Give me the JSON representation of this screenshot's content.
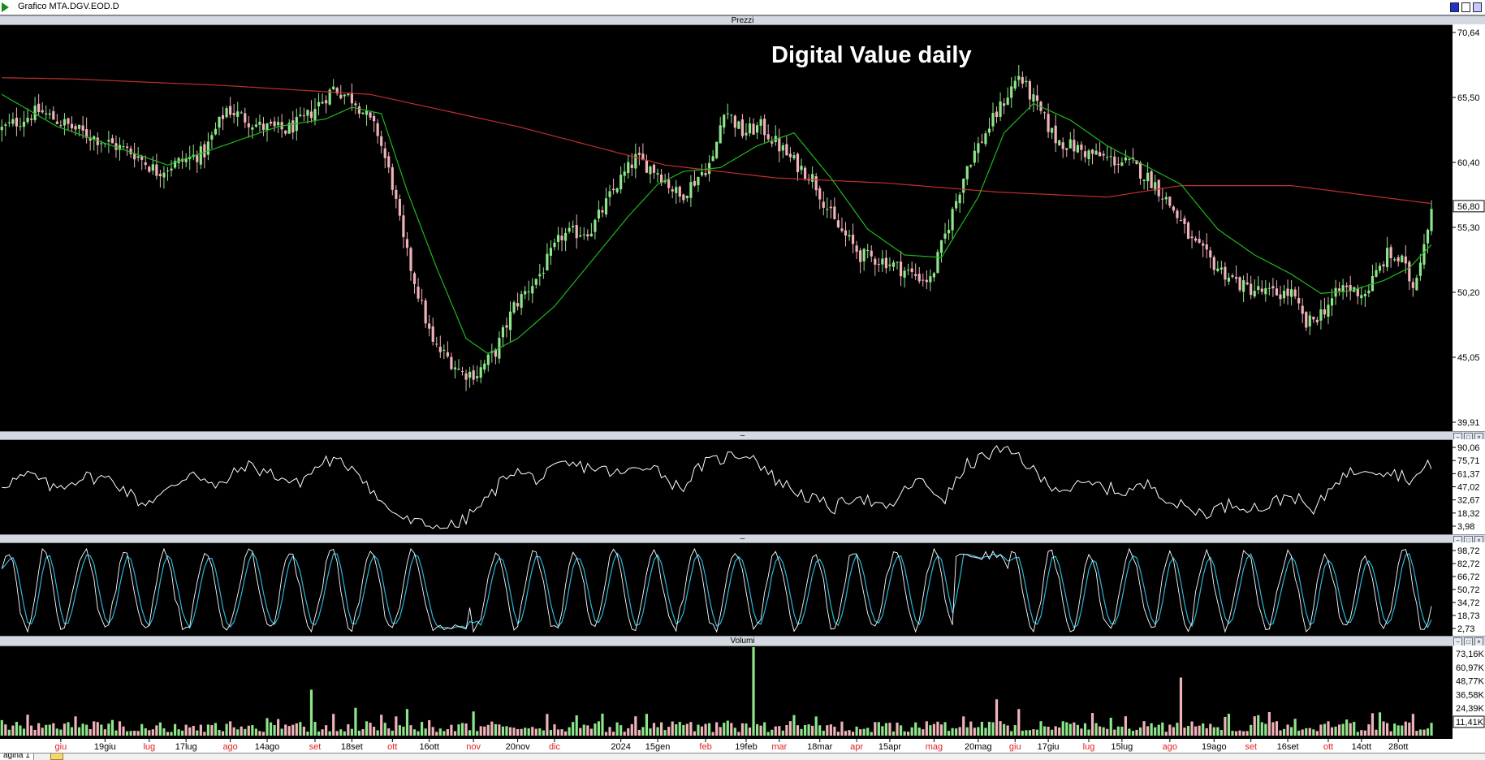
{
  "window": {
    "title": "Grafico MTA.DGV.EOD.D"
  },
  "panels": {
    "price": {
      "caption": "Prezzi",
      "buttons": [
        "−",
        "□",
        "×"
      ]
    },
    "rsi": {
      "caption": "–",
      "buttons": [
        "−",
        "□",
        "×"
      ]
    },
    "stoch": {
      "caption": "–",
      "buttons": [
        "−",
        "□",
        "×"
      ]
    },
    "volume": {
      "caption": "Volumi",
      "buttons": [
        "−",
        "□",
        "×"
      ]
    }
  },
  "bottom_tab": {
    "label": "agina 1"
  },
  "colors": {
    "up": "#8ee68a",
    "down": "#f0b3ba",
    "ma_long": "#c0302c",
    "ma_short": "#1db81d",
    "rsi": "#ffffff",
    "stoch_k": "#ffffff",
    "stoch_d": "#28b8d8",
    "date_red": "#e02020",
    "date_black": "#000000"
  },
  "chart_data": [
    {
      "type": "candlestick",
      "title": "Digital Value daily",
      "ylim": [
        39.91,
        70.64
      ],
      "y_ticks": [
        "70,64",
        "65,50",
        "60,40",
        "55,30",
        "50,20",
        "45,05",
        "39,91"
      ],
      "last_price_label": "56,80",
      "last_price": 56.8,
      "close_path": [
        [
          0,
          62.8
        ],
        [
          10,
          64.2
        ],
        [
          22,
          62.5
        ],
        [
          36,
          60.9
        ],
        [
          42,
          59.5
        ],
        [
          47,
          60.1
        ],
        [
          55,
          61.0
        ],
        [
          61,
          64.4
        ],
        [
          70,
          63.0
        ],
        [
          77,
          62.7
        ],
        [
          82,
          63.5
        ],
        [
          90,
          66.0
        ],
        [
          96,
          65.0
        ],
        [
          102,
          62.5
        ],
        [
          106,
          58.5
        ],
        [
          109,
          54.0
        ],
        [
          113,
          50.0
        ],
        [
          117,
          46.0
        ],
        [
          121,
          45.0
        ],
        [
          125,
          43.8
        ],
        [
          129,
          43.8
        ],
        [
          134,
          45.5
        ],
        [
          139,
          49.0
        ],
        [
          146,
          51.5
        ],
        [
          152,
          54.5
        ],
        [
          160,
          55.0
        ],
        [
          167,
          58.5
        ],
        [
          172,
          60.5
        ],
        [
          178,
          59.5
        ],
        [
          184,
          57.5
        ],
        [
          193,
          60.4
        ],
        [
          196,
          64.5
        ],
        [
          201,
          62.5
        ],
        [
          206,
          63.0
        ],
        [
          214,
          60.5
        ],
        [
          220,
          59.0
        ],
        [
          226,
          55.5
        ],
        [
          233,
          53.0
        ],
        [
          240,
          52.5
        ],
        [
          247,
          51.5
        ],
        [
          252,
          51.0
        ],
        [
          256,
          54.5
        ],
        [
          262,
          60.0
        ],
        [
          268,
          63.0
        ],
        [
          276,
          67.0
        ],
        [
          281,
          64.5
        ],
        [
          286,
          62.0
        ],
        [
          294,
          61.0
        ],
        [
          300,
          60.5
        ],
        [
          307,
          60.0
        ],
        [
          313,
          58.5
        ],
        [
          318,
          56.5
        ],
        [
          323,
          54.0
        ],
        [
          330,
          52.0
        ],
        [
          337,
          50.5
        ],
        [
          344,
          50.0
        ],
        [
          350,
          50.0
        ],
        [
          354,
          47.5
        ],
        [
          358,
          48.5
        ],
        [
          364,
          50.5
        ],
        [
          370,
          50.0
        ],
        [
          376,
          53.0
        ],
        [
          380,
          52.5
        ],
        [
          383,
          50.5
        ],
        [
          386,
          54.0
        ],
        [
          388,
          56.8
        ]
      ],
      "ma_long": [
        [
          0,
          66.8
        ],
        [
          20,
          66.7
        ],
        [
          60,
          66.2
        ],
        [
          100,
          65.5
        ],
        [
          140,
          63.0
        ],
        [
          180,
          60.0
        ],
        [
          210,
          59.0
        ],
        [
          240,
          58.6
        ],
        [
          270,
          57.9
        ],
        [
          300,
          57.5
        ],
        [
          320,
          58.4
        ],
        [
          350,
          58.4
        ],
        [
          388,
          57.0
        ]
      ],
      "ma_short": [
        [
          0,
          65.5
        ],
        [
          15,
          63.0
        ],
        [
          30,
          61.5
        ],
        [
          45,
          60.0
        ],
        [
          60,
          61.5
        ],
        [
          75,
          63.0
        ],
        [
          88,
          63.6
        ],
        [
          95,
          64.5
        ],
        [
          103,
          64.0
        ],
        [
          110,
          58.0
        ],
        [
          118,
          52.0
        ],
        [
          126,
          46.5
        ],
        [
          132,
          45.3
        ],
        [
          140,
          46.5
        ],
        [
          150,
          49.0
        ],
        [
          160,
          52.5
        ],
        [
          170,
          56.0
        ],
        [
          178,
          58.5
        ],
        [
          185,
          59.5
        ],
        [
          195,
          59.8
        ],
        [
          205,
          61.5
        ],
        [
          215,
          62.5
        ],
        [
          225,
          59.0
        ],
        [
          235,
          55.0
        ],
        [
          245,
          53.0
        ],
        [
          255,
          52.8
        ],
        [
          265,
          57.5
        ],
        [
          272,
          62.5
        ],
        [
          280,
          64.8
        ],
        [
          290,
          63.5
        ],
        [
          300,
          61.5
        ],
        [
          310,
          60.0
        ],
        [
          320,
          58.5
        ],
        [
          330,
          55.0
        ],
        [
          340,
          53.0
        ],
        [
          350,
          51.5
        ],
        [
          358,
          50.0
        ],
        [
          366,
          50.2
        ],
        [
          375,
          51.0
        ],
        [
          382,
          52.0
        ],
        [
          388,
          53.8
        ]
      ]
    },
    {
      "type": "line",
      "name": "oscillator-1",
      "ylim": [
        3.98,
        90.06
      ],
      "y_ticks": [
        "90,06",
        "75,71",
        "61,37",
        "47,02",
        "32,67",
        "18,32",
        "3,98"
      ],
      "series": [
        {
          "values_path": [
            [
              0,
              50
            ],
            [
              8,
              60
            ],
            [
              14,
              45
            ],
            [
              22,
              58
            ],
            [
              30,
              55
            ],
            [
              38,
              30
            ],
            [
              44,
              40
            ],
            [
              52,
              65
            ],
            [
              58,
              45
            ],
            [
              66,
              70
            ],
            [
              74,
              60
            ],
            [
              80,
              50
            ],
            [
              88,
              75
            ],
            [
              96,
              68
            ],
            [
              103,
              30
            ],
            [
              110,
              12
            ],
            [
              118,
              5
            ],
            [
              124,
              8
            ],
            [
              132,
              35
            ],
            [
              138,
              65
            ],
            [
              146,
              55
            ],
            [
              152,
              70
            ],
            [
              160,
              68
            ],
            [
              168,
              60
            ],
            [
              176,
              72
            ],
            [
              184,
              45
            ],
            [
              190,
              70
            ],
            [
              198,
              80
            ],
            [
              203,
              82
            ],
            [
              210,
              55
            ],
            [
              218,
              38
            ],
            [
              226,
              25
            ],
            [
              232,
              40
            ],
            [
              240,
              22
            ],
            [
              248,
              55
            ],
            [
              256,
              35
            ],
            [
              262,
              70
            ],
            [
              270,
              85
            ],
            [
              276,
              80
            ],
            [
              282,
              55
            ],
            [
              288,
              45
            ],
            [
              296,
              50
            ],
            [
              304,
              42
            ],
            [
              312,
              50
            ],
            [
              318,
              30
            ],
            [
              326,
              20
            ],
            [
              334,
              30
            ],
            [
              342,
              25
            ],
            [
              350,
              40
            ],
            [
              356,
              20
            ],
            [
              362,
              55
            ],
            [
              370,
              68
            ],
            [
              378,
              62
            ],
            [
              383,
              55
            ],
            [
              388,
              72
            ]
          ]
        }
      ]
    },
    {
      "type": "line",
      "name": "oscillator-2",
      "ylim": [
        2.73,
        98.72
      ],
      "y_ticks": [
        "98,72",
        "82,72",
        "66,72",
        "50,72",
        "34,72",
        "18,73",
        "2,73"
      ],
      "series": [
        {
          "name": "k",
          "values_path": "generated-oscillation"
        },
        {
          "name": "d",
          "values_path": "generated-oscillation-lagged"
        }
      ]
    },
    {
      "type": "bar",
      "name": "volume",
      "ylim": [
        0,
        73.16
      ],
      "y_ticks": [
        "73,16K",
        "60,97K",
        "48,77K",
        "36,58K",
        "24,39K",
        "11,41K"
      ],
      "last_volume_label": "11,41K",
      "spikes": [
        [
          84,
          38
        ],
        [
          96,
          23
        ],
        [
          204,
          73.16
        ],
        [
          320,
          48
        ],
        [
          90,
          18
        ],
        [
          110,
          22
        ],
        [
          128,
          20
        ],
        [
          175,
          18
        ],
        [
          215,
          17
        ],
        [
          270,
          30
        ],
        [
          276,
          22
        ],
        [
          305,
          16
        ],
        [
          340,
          16
        ],
        [
          383,
          18
        ]
      ]
    }
  ],
  "x_axis": {
    "labels": [
      {
        "text": "giu",
        "color": "red",
        "bar": 16
      },
      {
        "text": "19giu",
        "color": "black",
        "bar": 28
      },
      {
        "text": "lug",
        "color": "red",
        "bar": 40
      },
      {
        "text": "17lug",
        "color": "black",
        "bar": 50
      },
      {
        "text": "ago",
        "color": "red",
        "bar": 62
      },
      {
        "text": "14ago",
        "color": "black",
        "bar": 72
      },
      {
        "text": "set",
        "color": "red",
        "bar": 85
      },
      {
        "text": "18set",
        "color": "black",
        "bar": 95
      },
      {
        "text": "ott",
        "color": "red",
        "bar": 106
      },
      {
        "text": "16ott",
        "color": "black",
        "bar": 116
      },
      {
        "text": "nov",
        "color": "red",
        "bar": 128
      },
      {
        "text": "20nov",
        "color": "black",
        "bar": 140
      },
      {
        "text": "dic",
        "color": "red",
        "bar": 150
      },
      {
        "text": "2024",
        "color": "black",
        "bar": 168
      },
      {
        "text": "15gen",
        "color": "black",
        "bar": 178
      },
      {
        "text": "feb",
        "color": "red",
        "bar": 191
      },
      {
        "text": "19feb",
        "color": "black",
        "bar": 202
      },
      {
        "text": "mar",
        "color": "red",
        "bar": 211
      },
      {
        "text": "18mar",
        "color": "black",
        "bar": 222
      },
      {
        "text": "apr",
        "color": "red",
        "bar": 232
      },
      {
        "text": "15apr",
        "color": "black",
        "bar": 241
      },
      {
        "text": "mag",
        "color": "red",
        "bar": 253
      },
      {
        "text": "20mag",
        "color": "black",
        "bar": 265
      },
      {
        "text": "giu",
        "color": "red",
        "bar": 275
      },
      {
        "text": "17giu",
        "color": "black",
        "bar": 284
      },
      {
        "text": "lug",
        "color": "red",
        "bar": 295
      },
      {
        "text": "15lug",
        "color": "black",
        "bar": 304
      },
      {
        "text": "ago",
        "color": "red",
        "bar": 317
      },
      {
        "text": "19ago",
        "color": "black",
        "bar": 329
      },
      {
        "text": "set",
        "color": "red",
        "bar": 339
      },
      {
        "text": "16set",
        "color": "black",
        "bar": 349
      },
      {
        "text": "ott",
        "color": "red",
        "bar": 360
      },
      {
        "text": "14ott",
        "color": "black",
        "bar": 369
      },
      {
        "text": "28ott",
        "color": "black",
        "bar": 379
      }
    ]
  }
}
